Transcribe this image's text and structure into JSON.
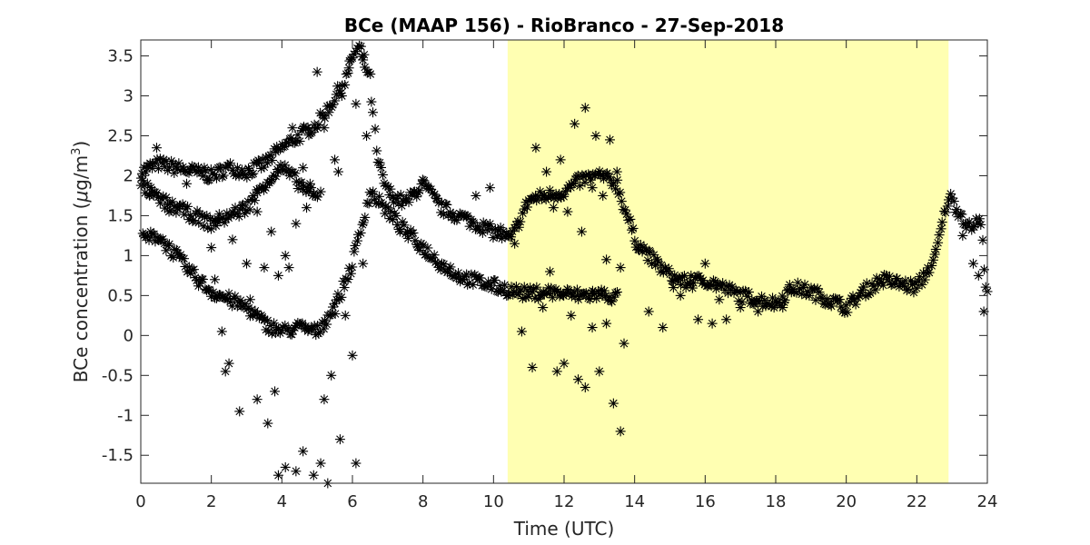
{
  "chart_data": {
    "type": "scatter",
    "title": "BCe (MAAP 156) - RioBranco - 27-Sep-2018",
    "xlabel": "Time (UTC)",
    "ylabel_main": "BCe concentration (",
    "ylabel_mu": "μ",
    "ylabel_unit": "g/m",
    "ylabel_exp": "3",
    "ylabel_close": ")",
    "xlim": [
      0,
      24
    ],
    "ylim": [
      -1.85,
      3.7
    ],
    "xticks": [
      0,
      2,
      4,
      6,
      8,
      10,
      12,
      14,
      16,
      18,
      20,
      22,
      24
    ],
    "yticks": [
      -1.5,
      -1,
      -0.5,
      0,
      0.5,
      1,
      1.5,
      2,
      2.5,
      3,
      3.5
    ],
    "xtick_labels": [
      "0",
      "2",
      "4",
      "6",
      "8",
      "10",
      "12",
      "14",
      "16",
      "18",
      "20",
      "22",
      "24"
    ],
    "ytick_labels": [
      "-1.5",
      "-1",
      "-0.5",
      "0",
      "0.5",
      "1",
      "1.5",
      "2",
      "2.5",
      "3",
      "3.5"
    ],
    "highlight_region": {
      "x_start": 10.4,
      "x_end": 22.9,
      "color": "#ffffb2"
    },
    "marker": "asterisk",
    "marker_color": "#000000",
    "trace_curves": [
      {
        "x": [
          0.0,
          0.5,
          1.0,
          1.5,
          2.0,
          2.5,
          3.0,
          3.5,
          4.0,
          4.5,
          5.0,
          5.4,
          5.8,
          6.0,
          6.2,
          6.5,
          6.7,
          7.0,
          7.5,
          8.0,
          8.5,
          9.0,
          9.5,
          10.0,
          10.5,
          11.0,
          11.5,
          12.0,
          12.5,
          13.0,
          13.5,
          14.0,
          14.5,
          15.0,
          15.5,
          16.0,
          16.5,
          17.0,
          17.5,
          18.0,
          18.5,
          19.0,
          19.5,
          20.0,
          20.5,
          21.0,
          21.5,
          22.0,
          22.5,
          22.9,
          23.2,
          23.5,
          23.8,
          24.0
        ],
        "y": [
          2.05,
          2.15,
          2.1,
          2.05,
          2.0,
          2.1,
          2.05,
          2.15,
          2.35,
          2.5,
          2.65,
          2.9,
          3.2,
          3.5,
          3.6,
          3.2,
          2.2,
          1.8,
          1.65,
          1.9,
          1.6,
          1.5,
          1.4,
          1.3,
          1.2,
          1.7,
          1.75,
          1.8,
          1.95,
          2.0,
          1.9,
          1.2,
          0.95,
          0.75,
          0.65,
          0.7,
          0.6,
          0.5,
          0.45,
          0.4,
          0.6,
          0.55,
          0.45,
          0.35,
          0.55,
          0.7,
          0.65,
          0.6,
          0.95,
          1.75,
          1.55,
          1.35,
          1.45,
          0.45
        ]
      },
      {
        "x": [
          0.0,
          0.5,
          1.0,
          1.5,
          2.0,
          2.5,
          3.0,
          3.5,
          4.0,
          4.5,
          5.0,
          5.5,
          6.0,
          6.5,
          7.0,
          7.5,
          8.0,
          8.5,
          9.0,
          9.5,
          10.0,
          10.5,
          11.0,
          11.5,
          12.0,
          12.5,
          13.0,
          13.5
        ],
        "y": [
          1.2,
          1.25,
          1.0,
          0.75,
          0.55,
          0.45,
          0.35,
          0.15,
          0.05,
          0.1,
          0.05,
          0.35,
          0.9,
          1.8,
          1.55,
          1.3,
          1.1,
          0.9,
          0.75,
          0.68,
          0.62,
          0.56,
          0.52,
          0.55,
          0.52,
          0.5,
          0.52,
          0.48
        ]
      },
      {
        "x": [
          0.0,
          0.5,
          1.0,
          1.5,
          2.0,
          2.5,
          3.0,
          3.5,
          4.0,
          4.5,
          5.0
        ],
        "y": [
          1.9,
          1.7,
          1.6,
          1.5,
          1.4,
          1.5,
          1.6,
          1.9,
          2.1,
          1.9,
          1.7
        ]
      }
    ],
    "scatter_points": [
      [
        0.25,
        1.75
      ],
      [
        0.45,
        2.35
      ],
      [
        0.8,
        1.55
      ],
      [
        1.3,
        1.9
      ],
      [
        1.8,
        2.1
      ],
      [
        2.0,
        1.1
      ],
      [
        2.1,
        0.7
      ],
      [
        2.3,
        0.05
      ],
      [
        2.4,
        -0.45
      ],
      [
        2.5,
        -0.35
      ],
      [
        2.8,
        -0.95
      ],
      [
        3.1,
        0.45
      ],
      [
        3.3,
        -0.8
      ],
      [
        3.5,
        0.2
      ],
      [
        3.6,
        -1.1
      ],
      [
        3.8,
        -0.7
      ],
      [
        3.9,
        -1.75
      ],
      [
        4.1,
        -1.65
      ],
      [
        4.2,
        0.85
      ],
      [
        4.4,
        -1.7
      ],
      [
        4.6,
        -1.45
      ],
      [
        4.9,
        -1.75
      ],
      [
        5.1,
        -1.6
      ],
      [
        5.2,
        -0.8
      ],
      [
        5.3,
        -1.85
      ],
      [
        5.4,
        -0.5
      ],
      [
        5.5,
        0.4
      ],
      [
        5.65,
        -1.3
      ],
      [
        5.8,
        0.25
      ],
      [
        6.0,
        -0.25
      ],
      [
        6.1,
        -1.6
      ],
      [
        6.3,
        0.9
      ],
      [
        3.5,
        0.85
      ],
      [
        3.9,
        0.75
      ],
      [
        4.3,
        2.6
      ],
      [
        4.6,
        2.1
      ],
      [
        4.8,
        1.9
      ],
      [
        5.0,
        3.3
      ],
      [
        5.2,
        2.6
      ],
      [
        5.5,
        2.2
      ],
      [
        5.7,
        3.0
      ],
      [
        5.9,
        3.35
      ],
      [
        6.1,
        2.9
      ],
      [
        6.3,
        3.45
      ],
      [
        6.4,
        2.5
      ],
      [
        2.2,
        1.45
      ],
      [
        2.6,
        1.2
      ],
      [
        3.0,
        0.9
      ],
      [
        3.3,
        1.55
      ],
      [
        3.7,
        1.3
      ],
      [
        4.1,
        1.0
      ],
      [
        4.4,
        1.4
      ],
      [
        4.7,
        1.6
      ],
      [
        5.1,
        1.8
      ],
      [
        5.6,
        2.05
      ],
      [
        9.5,
        1.75
      ],
      [
        9.9,
        1.85
      ],
      [
        10.2,
        1.35
      ],
      [
        10.6,
        1.15
      ],
      [
        10.8,
        0.05
      ],
      [
        11.1,
        -0.4
      ],
      [
        11.4,
        0.35
      ],
      [
        11.6,
        0.8
      ],
      [
        11.8,
        -0.45
      ],
      [
        12.0,
        -0.35
      ],
      [
        12.2,
        0.25
      ],
      [
        12.4,
        -0.55
      ],
      [
        12.6,
        -0.65
      ],
      [
        12.8,
        0.1
      ],
      [
        13.0,
        -0.45
      ],
      [
        13.2,
        0.15
      ],
      [
        13.4,
        -0.85
      ],
      [
        13.6,
        -1.2
      ],
      [
        13.7,
        -0.1
      ],
      [
        11.2,
        2.35
      ],
      [
        11.5,
        2.05
      ],
      [
        11.9,
        2.2
      ],
      [
        12.3,
        2.65
      ],
      [
        12.6,
        2.85
      ],
      [
        12.9,
        2.5
      ],
      [
        13.1,
        1.75
      ],
      [
        13.3,
        2.45
      ],
      [
        13.5,
        2.05
      ],
      [
        11.7,
        1.6
      ],
      [
        12.1,
        1.55
      ],
      [
        12.5,
        1.3
      ],
      [
        12.8,
        1.85
      ],
      [
        13.2,
        0.95
      ],
      [
        13.6,
        0.85
      ],
      [
        14.4,
        0.3
      ],
      [
        14.8,
        0.1
      ],
      [
        15.3,
        0.5
      ],
      [
        15.8,
        0.2
      ],
      [
        16.2,
        0.15
      ],
      [
        16.6,
        0.2
      ],
      [
        17.0,
        0.35
      ],
      [
        17.5,
        0.3
      ],
      [
        18.2,
        0.35
      ],
      [
        15.1,
        0.6
      ],
      [
        15.6,
        0.75
      ],
      [
        16.0,
        0.9
      ],
      [
        16.4,
        0.45
      ],
      [
        23.3,
        1.25
      ],
      [
        23.6,
        0.9
      ],
      [
        23.75,
        0.75
      ],
      [
        23.9,
        0.3
      ],
      [
        24.0,
        0.55
      ]
    ]
  }
}
